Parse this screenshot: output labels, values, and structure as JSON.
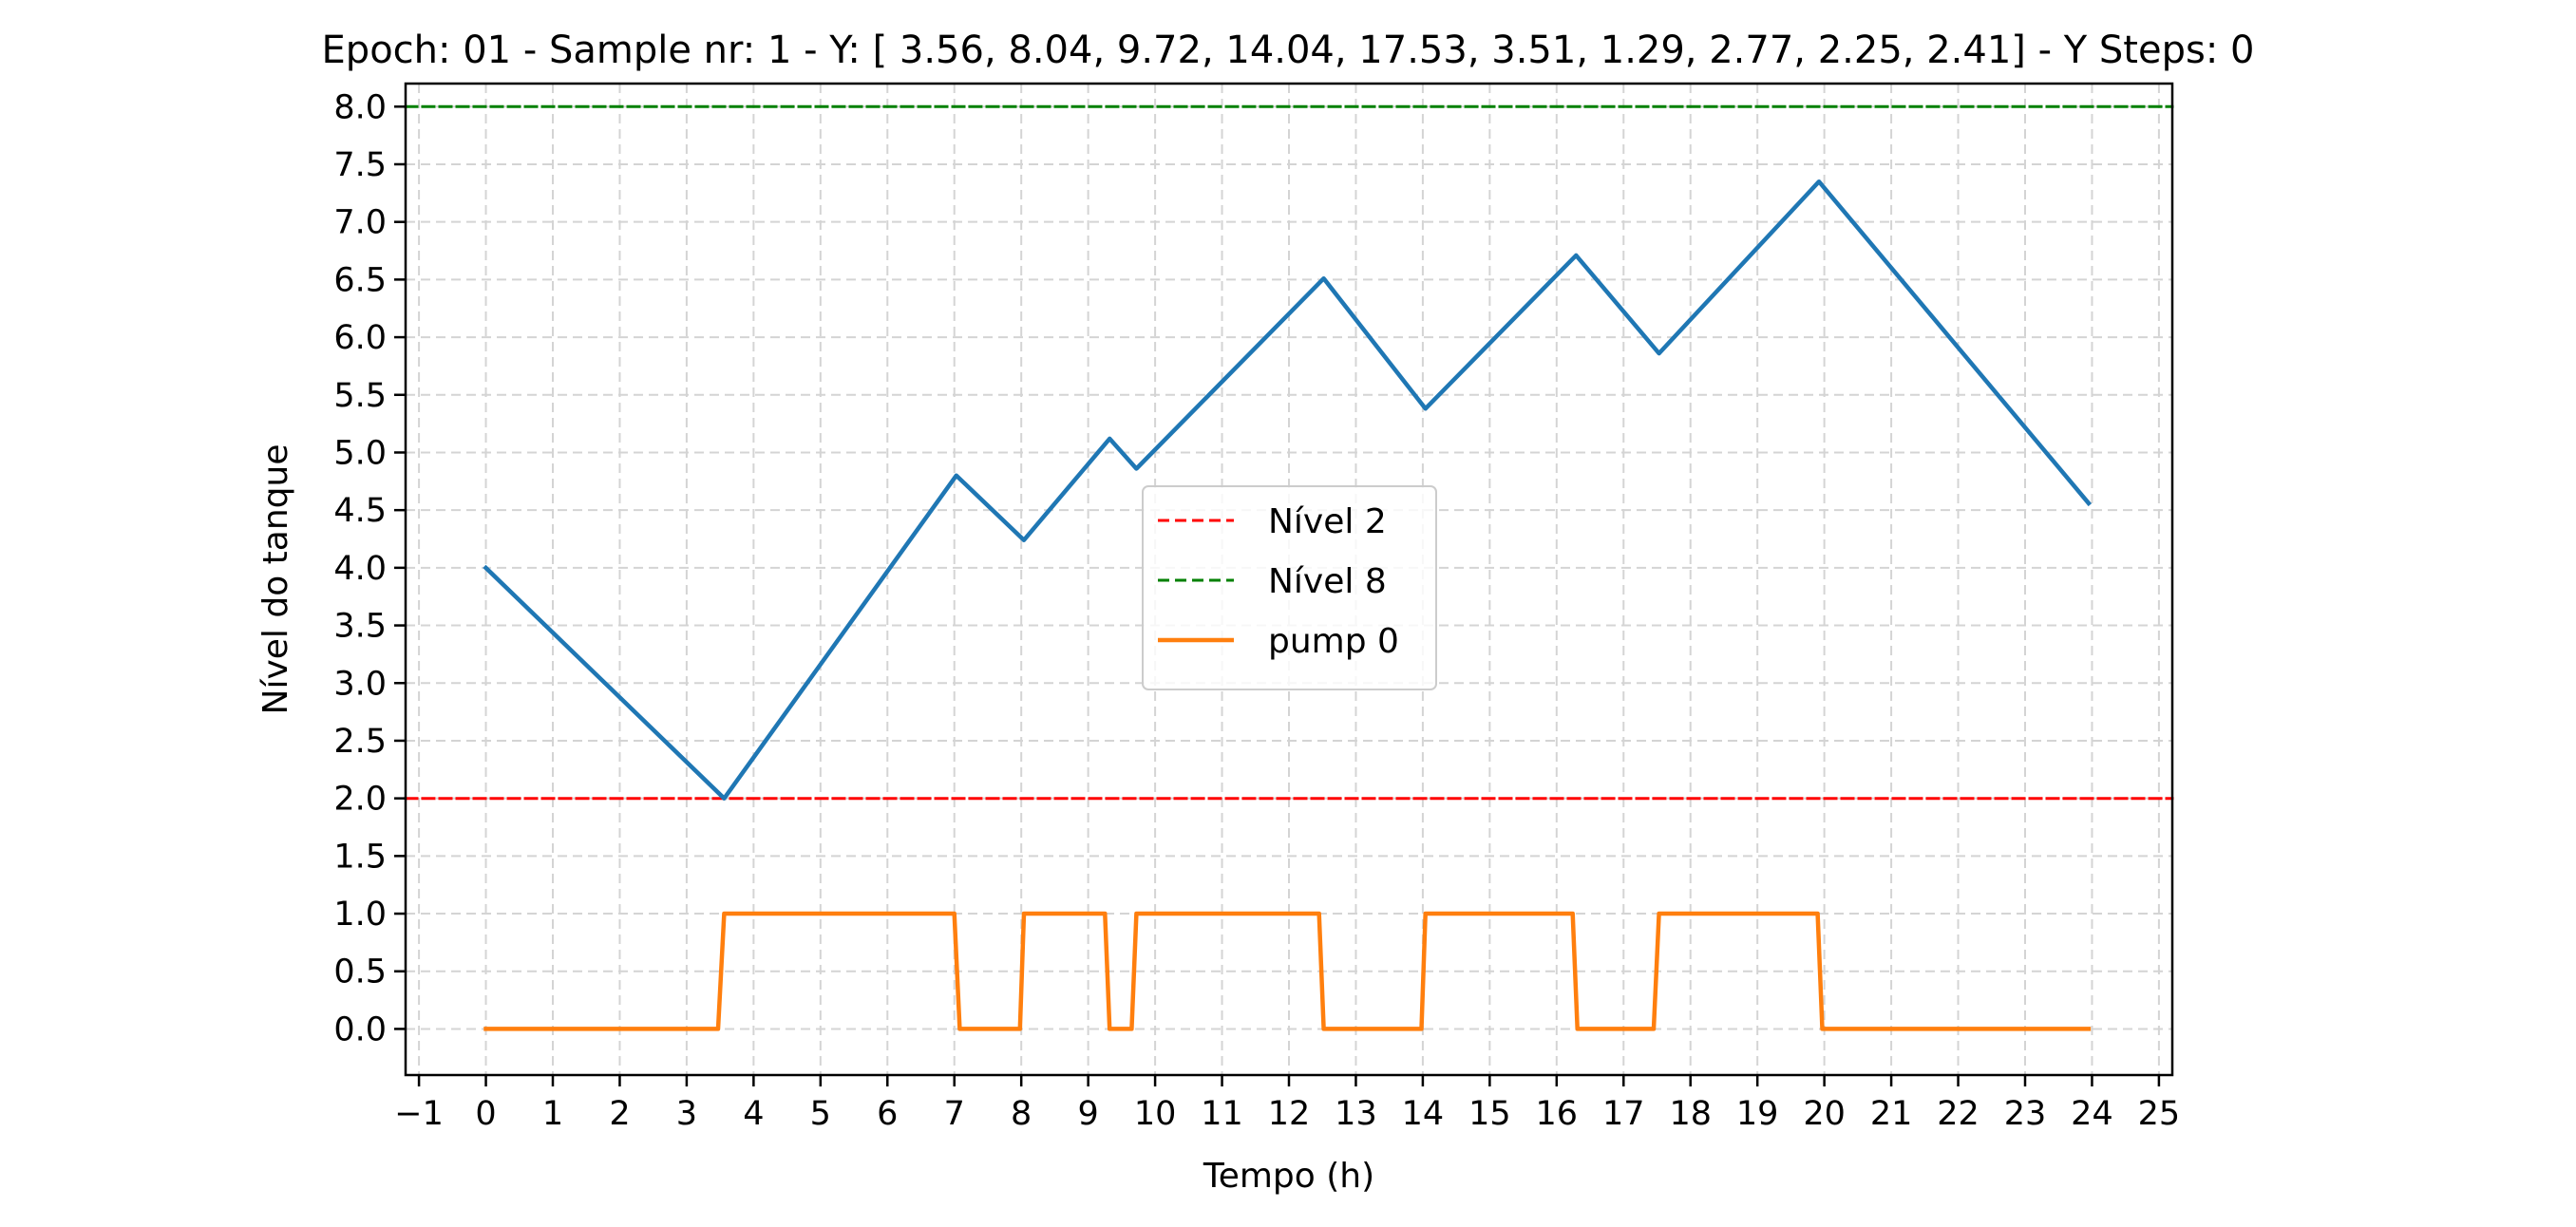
{
  "chart_data": {
    "type": "line",
    "title": "Epoch: 01 - Sample nr: 1 - Y: [ 3.56,  8.04,  9.72, 14.04, 17.53,  3.51,  1.29,  2.77,  2.25,  2.41] - Y Steps: 0",
    "xlabel": "Tempo (h)",
    "ylabel": "Nível do tanque",
    "xlim": [
      -1.2,
      25.2
    ],
    "ylim": [
      -0.4,
      8.2
    ],
    "x_ticks": [
      -1,
      0,
      1,
      2,
      3,
      4,
      5,
      6,
      7,
      8,
      9,
      10,
      11,
      12,
      13,
      14,
      15,
      16,
      17,
      18,
      19,
      20,
      21,
      22,
      23,
      24,
      25
    ],
    "x_tick_labels": [
      "−1",
      "0",
      "1",
      "2",
      "3",
      "4",
      "5",
      "6",
      "7",
      "8",
      "9",
      "10",
      "11",
      "12",
      "13",
      "14",
      "15",
      "16",
      "17",
      "18",
      "19",
      "20",
      "21",
      "22",
      "23",
      "24",
      "25"
    ],
    "y_ticks": [
      0.0,
      0.5,
      1.0,
      1.5,
      2.0,
      2.5,
      3.0,
      3.5,
      4.0,
      4.5,
      5.0,
      5.5,
      6.0,
      6.5,
      7.0,
      7.5,
      8.0
    ],
    "y_tick_labels": [
      "0.0",
      "0.5",
      "1.0",
      "1.5",
      "2.0",
      "2.5",
      "3.0",
      "3.5",
      "4.0",
      "4.5",
      "5.0",
      "5.5",
      "6.0",
      "6.5",
      "7.0",
      "7.5",
      "8.0"
    ],
    "grid": true,
    "legend_position": "center",
    "series": [
      {
        "color": "#1f77b4",
        "style": "solid",
        "x": [
          0,
          3.56,
          7.03,
          8.04,
          9.32,
          9.72,
          12.52,
          14.04,
          16.29,
          17.53,
          19.92,
          23.95
        ],
        "y": [
          4.0,
          2.0,
          4.8,
          4.24,
          5.12,
          4.86,
          6.51,
          5.38,
          6.71,
          5.86,
          7.35,
          4.56
        ]
      },
      {
        "name": "Nível 2",
        "color": "#ff0000",
        "style": "dashed",
        "x": [
          -1.2,
          25.2
        ],
        "y": [
          2.0,
          2.0
        ]
      },
      {
        "name": "Nível 8",
        "color": "#008000",
        "style": "dashed",
        "x": [
          -1.2,
          25.2
        ],
        "y": [
          8.0,
          8.0
        ]
      },
      {
        "name": "pump 0",
        "color": "#ff7f0e",
        "style": "solid",
        "x": [
          0,
          3.47,
          3.56,
          7.0,
          7.08,
          7.98,
          8.04,
          9.25,
          9.32,
          9.65,
          9.72,
          12.45,
          12.52,
          13.98,
          14.04,
          16.24,
          16.31,
          17.45,
          17.53,
          19.9,
          19.97,
          23.95
        ],
        "y": [
          0,
          0,
          1,
          1,
          0,
          0,
          1,
          1,
          0,
          0,
          1,
          1,
          0,
          0,
          1,
          1,
          0,
          0,
          1,
          1,
          0,
          0
        ]
      }
    ]
  }
}
